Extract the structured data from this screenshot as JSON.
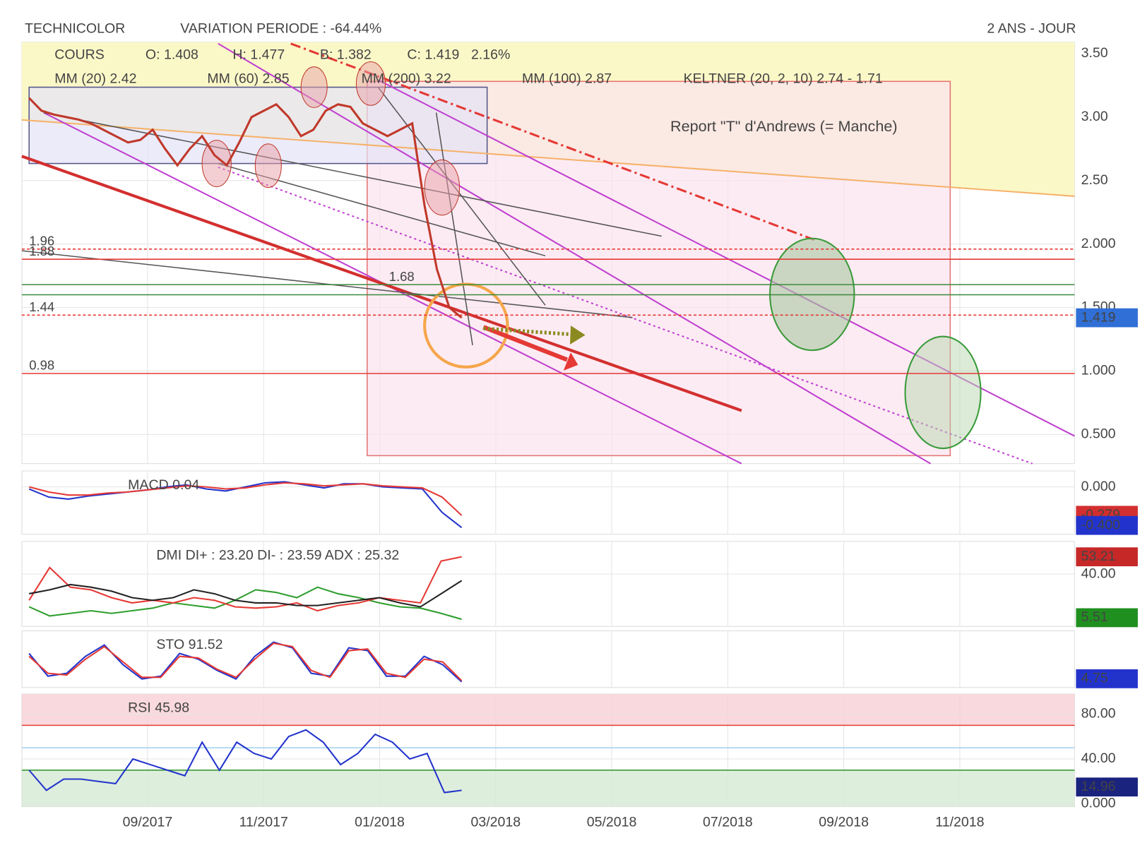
{
  "chart_data": [
    {
      "type": "line",
      "title": "TECHNICOLOR",
      "subtitle": "VARIATION PERIODE : -64.44%",
      "period": "2 ANS - JOUR",
      "legend": [
        "O: 1.408",
        "H: 1.477",
        "B: 1.382",
        "C: 1.419",
        "2.16%"
      ],
      "indicators": [
        {
          "name": "MM (20) 2.42",
          "color": "#e53935"
        },
        {
          "name": "MM (60) 2.85",
          "color": "#f5a623"
        },
        {
          "name": "MM (200) 3.22",
          "color": "#8fae8f"
        },
        {
          "name": "MM (100) 2.87",
          "color": "#5bc8c8"
        },
        {
          "name": "KELTNER (20, 2, 10) 2.74 - 1.71",
          "color": "#1b7a1b"
        }
      ],
      "annotation": "Report \"T\" d'Andrews (= Manche)",
      "levels": [
        {
          "label": "1.96",
          "value": 1.96,
          "color": "#e53935",
          "dashed": true
        },
        {
          "label": "1.88",
          "value": 1.88,
          "color": "#e53935",
          "dashed": false
        },
        {
          "label": "1.44",
          "value": 1.44,
          "color": "#e53935",
          "dashed": true
        },
        {
          "label": "0.98",
          "value": 0.98,
          "color": "#e53935",
          "dashed": false
        },
        {
          "label": "1.68",
          "value": 1.68,
          "color": "#3a8a3a",
          "dashed": false
        },
        {
          "value": 1.6,
          "color": "#3a8a3a",
          "dashed": false
        }
      ],
      "series": [
        {
          "name": "COURS",
          "color": "#c0392b",
          "values": [
            3.15,
            3.05,
            3.02,
            3.0,
            2.98,
            2.95,
            2.9,
            2.85,
            2.8,
            2.82,
            2.9,
            2.75,
            2.62,
            2.75,
            2.85,
            2.7,
            2.62,
            2.8,
            3.0,
            3.05,
            3.1,
            3.0,
            2.85,
            2.9,
            3.05,
            3.1,
            3.08,
            2.95,
            2.9,
            2.85,
            2.9,
            2.95,
            2.3,
            1.8,
            1.5,
            1.419
          ]
        }
      ],
      "badges": [
        {
          "value": 1.419,
          "color": "#2f6fd6"
        }
      ],
      "ylim": [
        0.27,
        3.59
      ],
      "yticks": [
        {
          "value": 3.5,
          "label": "3.50"
        },
        {
          "value": 3,
          "label": "3.00"
        },
        {
          "value": 2.5,
          "label": "2.50"
        },
        {
          "value": 2,
          "label": "2.000"
        },
        {
          "value": 1.5,
          "label": "1.500"
        },
        {
          "value": 1,
          "label": "1.000"
        },
        {
          "value": 0.5,
          "label": "0.500"
        }
      ],
      "grid": true
    },
    {
      "type": "line",
      "title": "MACD 0.04",
      "series": [
        {
          "color": "#2233cc",
          "values": [
            -0.02,
            -0.1,
            -0.12,
            -0.09,
            -0.07,
            -0.05,
            -0.03,
            0.0,
            0.02,
            -0.02,
            -0.04,
            0.0,
            0.04,
            0.05,
            0.02,
            -0.01,
            0.03,
            0.03,
            0.0,
            -0.01,
            -0.02,
            -0.25,
            -0.4
          ]
        },
        {
          "color": "#e53935",
          "values": [
            0.0,
            -0.05,
            -0.08,
            -0.08,
            -0.06,
            -0.05,
            -0.03,
            -0.01,
            0.01,
            0.0,
            -0.02,
            -0.01,
            0.02,
            0.04,
            0.03,
            0.01,
            0.02,
            0.03,
            0.01,
            0.0,
            -0.01,
            -0.1,
            -0.28
          ]
        }
      ],
      "badges": [
        {
          "value": -0.279,
          "color": "#d32f2f"
        },
        {
          "value": -0.4,
          "label": "-0.400",
          "color": "#2233cc"
        }
      ],
      "ylim": [
        -0.464,
        0.157
      ],
      "yticks": [
        {
          "value": 0,
          "label": "0.000"
        }
      ],
      "grid": true
    },
    {
      "type": "line",
      "title": "DMI  DI+ : 23.20 DI- : 23.59 ADX : 25.32",
      "series": [
        {
          "color": "#2e9e2e",
          "values": [
            15,
            8,
            10,
            12,
            10,
            12,
            14,
            18,
            16,
            14,
            20,
            28,
            26,
            22,
            30,
            25,
            22,
            18,
            15,
            14,
            10,
            5.51
          ]
        },
        {
          "color": "#e53935",
          "values": [
            20,
            45,
            30,
            28,
            22,
            18,
            20,
            18,
            22,
            20,
            15,
            14,
            15,
            18,
            12,
            16,
            18,
            22,
            20,
            18,
            50,
            53.21
          ]
        },
        {
          "color": "#222222",
          "values": [
            25,
            28,
            32,
            30,
            27,
            22,
            20,
            22,
            28,
            25,
            20,
            18,
            18,
            16,
            16,
            18,
            20,
            22,
            18,
            15,
            25,
            35
          ]
        }
      ],
      "badges": [
        {
          "value": 53.21,
          "color": "#c62828"
        },
        {
          "value": 5.51,
          "color": "#1f8f1f"
        }
      ],
      "ylim": [
        0,
        65
      ],
      "yticks": [
        {
          "value": 40,
          "label": "40.00"
        }
      ],
      "grid": true
    },
    {
      "type": "line",
      "title": "STO  91.52",
      "series": [
        {
          "color": "#2233cc",
          "values": [
            60,
            20,
            25,
            55,
            75,
            40,
            15,
            20,
            60,
            50,
            30,
            15,
            55,
            80,
            70,
            25,
            20,
            70,
            65,
            20,
            20,
            55,
            40,
            10
          ]
        },
        {
          "color": "#e53935",
          "values": [
            55,
            25,
            22,
            50,
            72,
            45,
            18,
            18,
            55,
            52,
            32,
            18,
            50,
            78,
            72,
            30,
            18,
            65,
            68,
            25,
            18,
            50,
            45,
            12
          ]
        }
      ],
      "badges": [
        {
          "value": 4.75,
          "color": "#2233cc"
        }
      ],
      "ylim": [
        0,
        100
      ],
      "yticks": [],
      "grid": true
    },
    {
      "type": "line",
      "title": "RSI  45.98",
      "bands": [
        {
          "value": 70,
          "color": "#e53935"
        },
        {
          "value": 50,
          "color": "#9fd0ee"
        },
        {
          "value": 30,
          "color": "#3a9a3a"
        }
      ],
      "series": [
        {
          "color": "#2233cc",
          "values": [
            30,
            12,
            22,
            22,
            20,
            18,
            40,
            35,
            30,
            25,
            55,
            30,
            55,
            45,
            40,
            60,
            66,
            55,
            35,
            45,
            62,
            55,
            40,
            45,
            10,
            12
          ]
        }
      ],
      "badges": [
        {
          "value": 14.96,
          "color": "#1a237e"
        }
      ],
      "ylim": [
        -2.6,
        98
      ],
      "yticks": [
        {
          "value": 80,
          "label": "80.00"
        },
        {
          "value": 40,
          "label": "40.00"
        },
        {
          "value": 0,
          "label": "0.000"
        }
      ],
      "grid": true
    }
  ],
  "time_axis": [
    "09/2017",
    "11/2017",
    "01/2018",
    "03/2018",
    "05/2018",
    "07/2018",
    "09/2018",
    "11/2018"
  ]
}
